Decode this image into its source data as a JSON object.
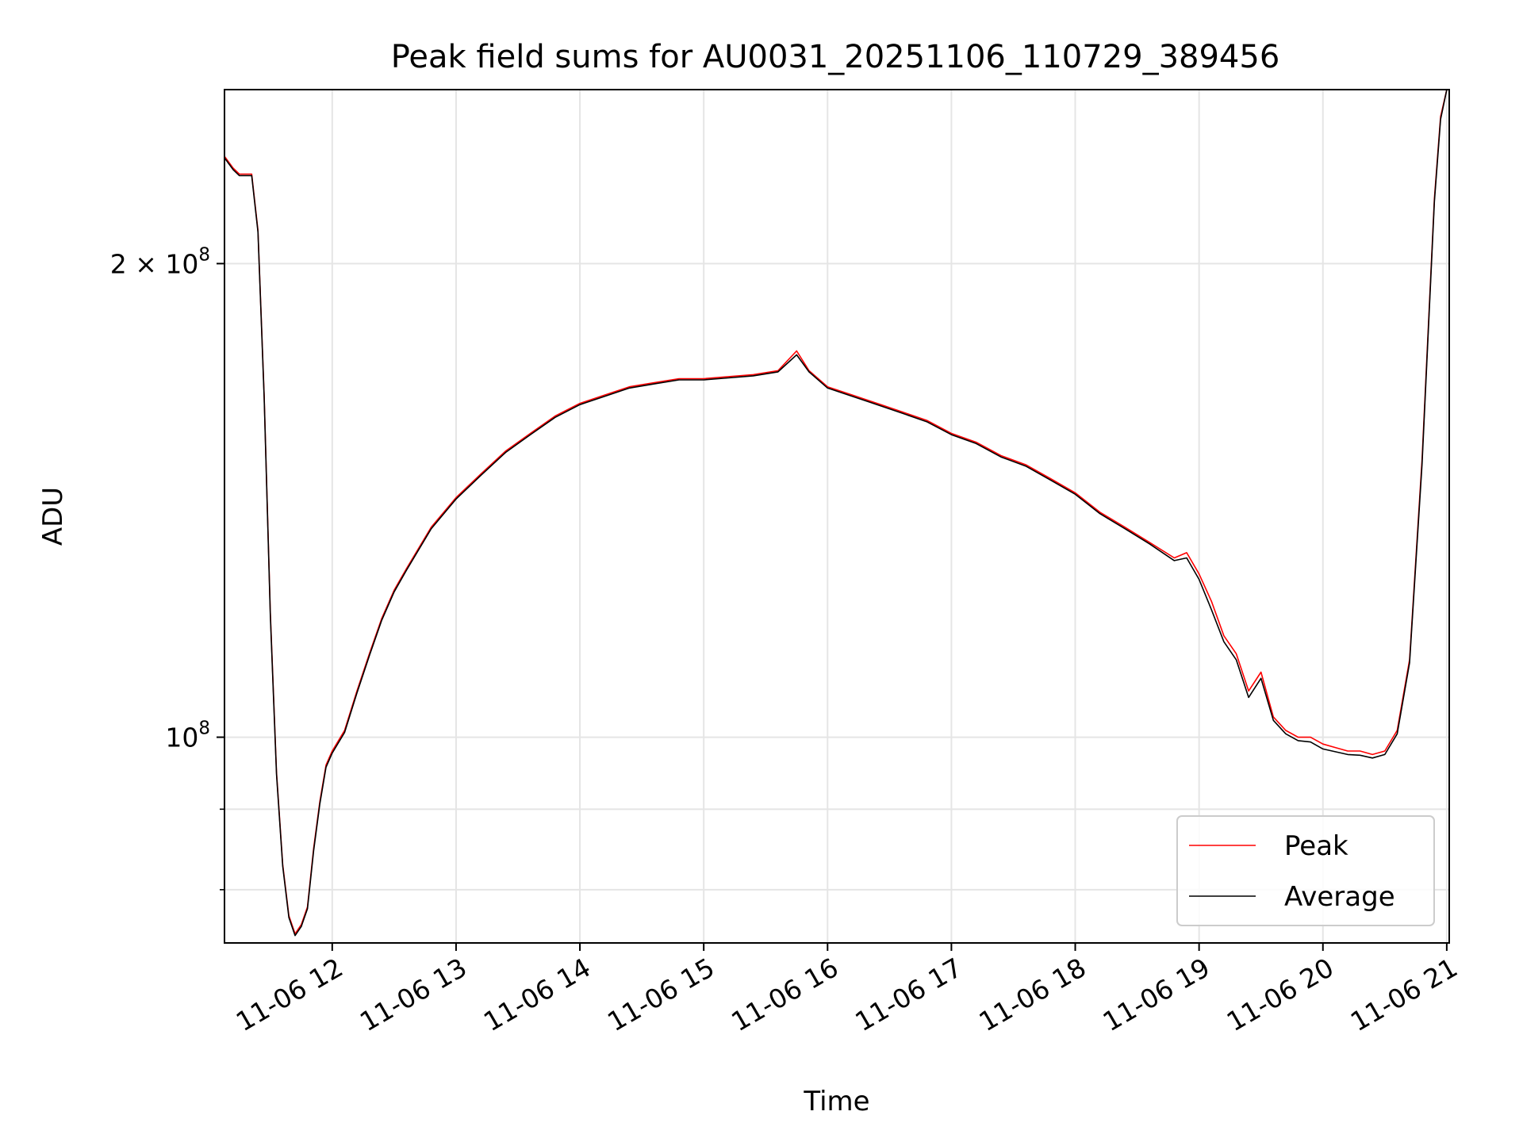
{
  "chart_data": {
    "type": "line",
    "title": "Peak field sums for AU0031_20251106_110729_389456",
    "xlabel": "Time",
    "ylabel": "ADU",
    "yscale": "log",
    "grid": true,
    "legend_position": "lower-right",
    "xlim": [
      11.13,
      21.02
    ],
    "ylim": [
      74000000,
      258000000
    ],
    "x_ticks": [
      {
        "value": 12,
        "label": "11-06 12"
      },
      {
        "value": 13,
        "label": "11-06 13"
      },
      {
        "value": 14,
        "label": "11-06 14"
      },
      {
        "value": 15,
        "label": "11-06 15"
      },
      {
        "value": 16,
        "label": "11-06 16"
      },
      {
        "value": 17,
        "label": "11-06 17"
      },
      {
        "value": 18,
        "label": "11-06 18"
      },
      {
        "value": 19,
        "label": "11-06 19"
      },
      {
        "value": 20,
        "label": "11-06 20"
      },
      {
        "value": 21,
        "label": "11-06 21"
      }
    ],
    "y_major_ticks": [
      {
        "value": 100000000,
        "base": "10",
        "exp": "8",
        "mantissa": ""
      },
      {
        "value": 200000000,
        "base": "10",
        "exp": "8",
        "mantissa": "2 × "
      }
    ],
    "y_minor_ticks": [
      80000000,
      90000000
    ],
    "series": [
      {
        "name": "Peak",
        "color": "#ff0000",
        "x": [
          11.13,
          11.2,
          11.25,
          11.35,
          11.4,
          11.45,
          11.5,
          11.55,
          11.6,
          11.65,
          11.7,
          11.75,
          11.8,
          11.85,
          11.9,
          11.95,
          12.0,
          12.1,
          12.2,
          12.3,
          12.4,
          12.5,
          12.6,
          12.8,
          13.0,
          13.2,
          13.4,
          13.6,
          13.8,
          14.0,
          14.2,
          14.4,
          14.6,
          14.8,
          15.0,
          15.2,
          15.4,
          15.6,
          15.75,
          15.85,
          16.0,
          16.2,
          16.4,
          16.6,
          16.8,
          17.0,
          17.2,
          17.4,
          17.6,
          17.8,
          18.0,
          18.2,
          18.4,
          18.6,
          18.8,
          18.9,
          19.0,
          19.1,
          19.2,
          19.3,
          19.4,
          19.5,
          19.6,
          19.7,
          19.8,
          19.9,
          20.0,
          20.1,
          20.2,
          20.3,
          20.4,
          20.5,
          20.6,
          20.7,
          20.8,
          20.9,
          20.95,
          21.0,
          21.02
        ],
        "y": [
          234000000,
          230000000,
          228000000,
          228000000,
          210000000,
          165000000,
          120000000,
          95000000,
          83000000,
          77000000,
          75000000,
          76000000,
          78000000,
          85000000,
          91000000,
          96000000,
          98000000,
          101000000,
          107000000,
          113000000,
          119000000,
          124000000,
          128000000,
          136000000,
          142000000,
          147000000,
          152000000,
          156000000,
          160000000,
          163000000,
          165000000,
          167000000,
          168000000,
          169000000,
          169000000,
          169500000,
          170000000,
          171000000,
          176000000,
          171000000,
          167000000,
          165000000,
          163000000,
          161000000,
          159000000,
          156000000,
          154000000,
          151000000,
          149000000,
          146000000,
          143000000,
          139000000,
          136000000,
          133000000,
          130000000,
          131000000,
          127000000,
          122000000,
          116000000,
          113000000,
          107000000,
          110000000,
          103000000,
          101000000,
          100000000,
          100000000,
          99000000,
          98500000,
          98000000,
          98000000,
          97500000,
          98000000,
          101000000,
          112000000,
          150000000,
          220000000,
          248000000,
          258000000,
          258000000
        ]
      },
      {
        "name": "Average",
        "color": "#000000",
        "x": [
          11.13,
          11.2,
          11.25,
          11.35,
          11.4,
          11.45,
          11.5,
          11.55,
          11.6,
          11.65,
          11.7,
          11.75,
          11.8,
          11.85,
          11.9,
          11.95,
          12.0,
          12.1,
          12.2,
          12.3,
          12.4,
          12.5,
          12.6,
          12.8,
          13.0,
          13.2,
          13.4,
          13.6,
          13.8,
          14.0,
          14.2,
          14.4,
          14.6,
          14.8,
          15.0,
          15.2,
          15.4,
          15.6,
          15.75,
          15.85,
          16.0,
          16.2,
          16.4,
          16.6,
          16.8,
          17.0,
          17.2,
          17.4,
          17.6,
          17.8,
          18.0,
          18.2,
          18.4,
          18.6,
          18.8,
          18.9,
          19.0,
          19.1,
          19.2,
          19.3,
          19.4,
          19.5,
          19.6,
          19.7,
          19.8,
          19.9,
          20.0,
          20.1,
          20.2,
          20.3,
          20.4,
          20.5,
          20.6,
          20.7,
          20.8,
          20.9,
          20.95,
          21.0,
          21.02
        ],
        "y": [
          233500000,
          229500000,
          227500000,
          227500000,
          209500000,
          164500000,
          119500000,
          94700000,
          82800000,
          76800000,
          74800000,
          75800000,
          77800000,
          84700000,
          90700000,
          95700000,
          97700000,
          100700000,
          106700000,
          112700000,
          118700000,
          123700000,
          127700000,
          135700000,
          141700000,
          146700000,
          151700000,
          155700000,
          159700000,
          162700000,
          164700000,
          166700000,
          167700000,
          168700000,
          168700000,
          169200000,
          169700000,
          170700000,
          175000000,
          170700000,
          166700000,
          164700000,
          162700000,
          160700000,
          158700000,
          155700000,
          153700000,
          150700000,
          148700000,
          145700000,
          142700000,
          138700000,
          135700000,
          132700000,
          129500000,
          130000000,
          126000000,
          120500000,
          115000000,
          112000000,
          106000000,
          109000000,
          102500000,
          100500000,
          99500000,
          99300000,
          98300000,
          97900000,
          97500000,
          97400000,
          97000000,
          97500000,
          100500000,
          111500000,
          149000000,
          219000000,
          247000000,
          258000000,
          258000000
        ]
      }
    ]
  }
}
